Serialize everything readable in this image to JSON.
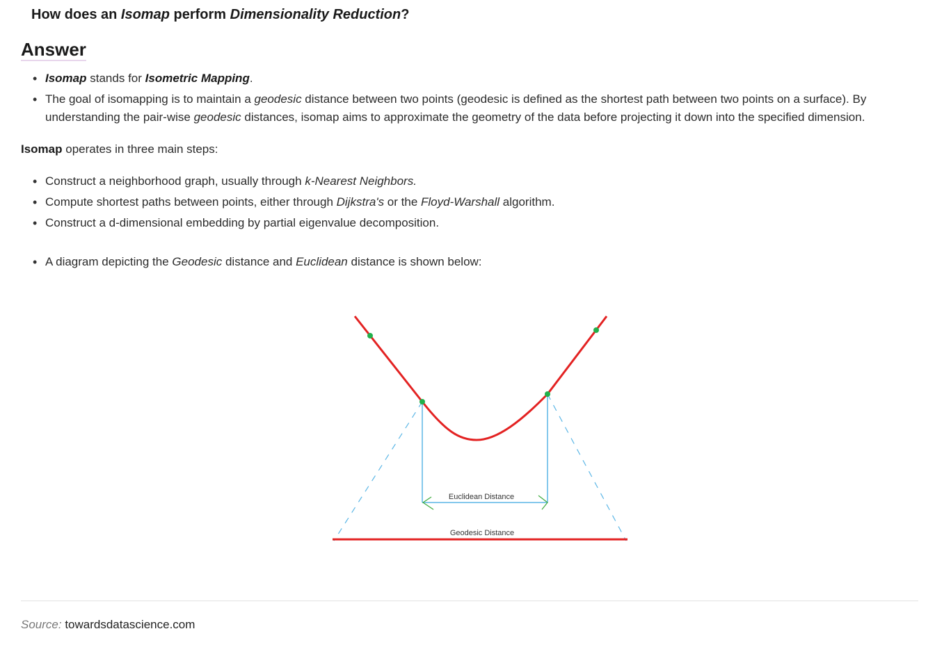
{
  "question": {
    "p1": "How does an ",
    "e1": "Isomap",
    "p2": " perform ",
    "e2": "Dimensionality Reduction",
    "p3": "?"
  },
  "answer_heading": "Answer",
  "list1": {
    "item1": {
      "b1": "Isomap",
      "t1": " stands for ",
      "b2": "Isometric Mapping",
      "t2": "."
    },
    "item2": {
      "t1": "The goal of isomapping is to maintain a ",
      "i1": "geodesic",
      "t2": " distance between two points (geodesic is defined as the shortest path between two points on a surface). By understanding the pair-wise ",
      "i2": "geodesic",
      "t3": " distances, isomap aims to approximate the geometry of the data before projecting it down into the specified dimension."
    }
  },
  "steps_intro": {
    "b": "Isomap",
    "t": " operates in three main steps:"
  },
  "steps": {
    "s1": {
      "t1": "Construct a neighborhood graph, usually through ",
      "i1": "k-Nearest Neighbors."
    },
    "s2": {
      "t1": "Compute shortest paths between points, either through ",
      "i1": "Dijkstra's",
      "t2": " or the ",
      "i2": "Floyd-Warshall",
      "t3": " algorithm."
    },
    "s3": {
      "t1": "Construct a d-dimensional embedding by partial eigenvalue decomposition."
    }
  },
  "diagram_intro": {
    "t1": "A diagram depicting the ",
    "i1": "Geodesic",
    "t2": " distance and ",
    "i2": "Euclidean",
    "t3": " distance is shown below:"
  },
  "diagram": {
    "euclidean_label": "Euclidean Distance",
    "geodesic_label": "Geodesic Distance",
    "colors": {
      "curve": "#e32222",
      "points": "#21b04b",
      "euclidean": "#5bb6e6",
      "arrowheads": "#3caa3c"
    }
  },
  "source": {
    "label": "Source:",
    "value": " towardsdatascience.com"
  }
}
